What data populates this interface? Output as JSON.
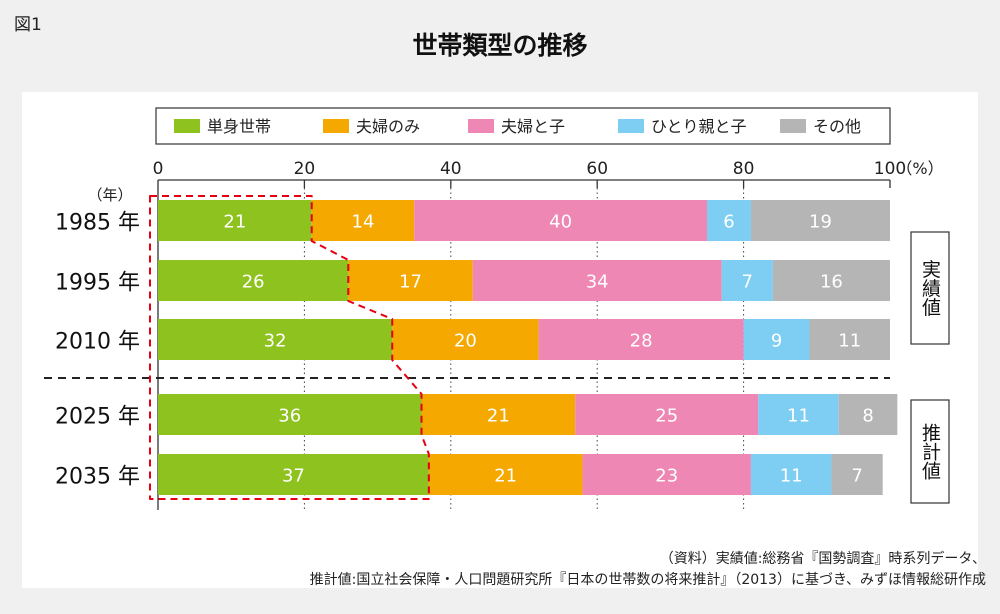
{
  "figure_label": "図1",
  "source": {
    "line1": "（資料）実績値:総務省『国勢調査』時系列データ、",
    "line2": "推計値:国立社会保障・人口問題研究所『日本の世帯数の将来推計』（2013）に基づき、みずほ情報総研作成"
  },
  "chart_data": {
    "type": "bar",
    "orientation": "horizontal",
    "stacked": true,
    "title": "世帯類型の推移",
    "xunit": "（%）",
    "yunit": "（年）",
    "xlim": [
      0,
      100
    ],
    "xticks": [
      "0",
      "20",
      "40",
      "60",
      "80",
      "100"
    ],
    "categories": [
      "1985 年",
      "1995 年",
      "2010 年",
      "2025 年",
      "2035 年"
    ],
    "series": [
      {
        "name": "単身世帯",
        "color": "#8dc21f",
        "values": [
          21,
          26,
          32,
          36,
          37
        ]
      },
      {
        "name": "夫婦のみ",
        "color": "#f4a800",
        "values": [
          14,
          17,
          20,
          21,
          21
        ]
      },
      {
        "name": "夫婦と子",
        "color": "#ee87b4",
        "values": [
          40,
          34,
          28,
          25,
          23
        ]
      },
      {
        "name": "ひとり親と子",
        "color": "#7ecef4",
        "values": [
          6,
          7,
          9,
          11,
          11
        ]
      },
      {
        "name": "その他",
        "color": "#b5b5b5",
        "values": [
          19,
          16,
          11,
          8,
          7
        ]
      }
    ],
    "groups": [
      {
        "label": "実績値",
        "rows": [
          0,
          1,
          2
        ]
      },
      {
        "label": "推計値",
        "rows": [
          3,
          4
        ]
      }
    ],
    "legend_position": "top"
  }
}
